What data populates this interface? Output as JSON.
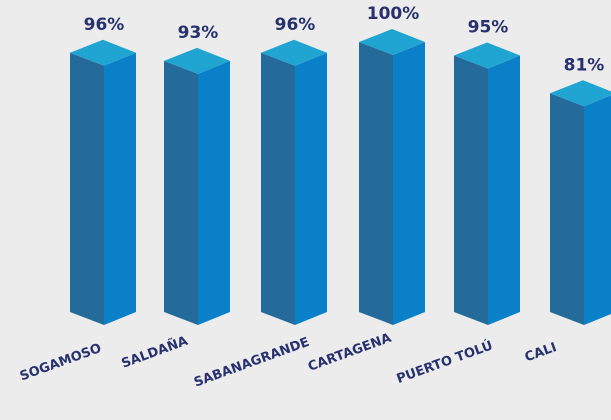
{
  "chart_data": {
    "type": "bar3d",
    "categories": [
      "SOGAMOSO",
      "SALDAÑA",
      "SABANAGRANDE",
      "CARTAGENA",
      "PUERTO TOLÚ",
      "CALI"
    ],
    "values": [
      96,
      93,
      96,
      100,
      95,
      81
    ],
    "value_labels": [
      "96%",
      "93%",
      "96%",
      "100%",
      "95%",
      "81%"
    ],
    "colors": {
      "left": "#246a9b",
      "right": "#0a80c9",
      "top": "#20a4d2"
    }
  }
}
